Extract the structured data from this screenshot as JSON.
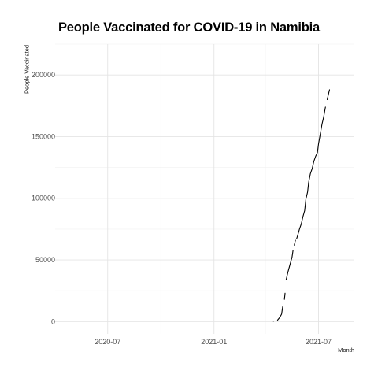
{
  "chart_data": {
    "type": "line",
    "title": "People Vaccinated for COVID-19 in Namibia",
    "xlabel": "Month",
    "ylabel": "People Vaccinated",
    "x_tick_labels": [
      "2020-07",
      "2021-01",
      "2021-07"
    ],
    "y_tick_labels": [
      "0",
      "50000",
      "100000",
      "150000",
      "200000"
    ],
    "y_ticks": [
      0,
      50000,
      100000,
      150000,
      200000
    ],
    "x_ticks": [
      "2020-07-01",
      "2021-01-01",
      "2021-07-01"
    ],
    "xlim": [
      "2020-04-01",
      "2021-09-01"
    ],
    "ylim": [
      -10000,
      225000
    ],
    "grid": true,
    "line_color": "#000000",
    "series": [
      {
        "segments": [
          [
            [
              "2021-04-14",
              400
            ]
          ],
          [
            [
              "2021-04-21",
              1200
            ],
            [
              "2021-04-25",
              3500
            ],
            [
              "2021-04-28",
              6000
            ],
            [
              "2021-04-30",
              12000
            ]
          ],
          [
            [
              "2021-05-03",
              18000
            ],
            [
              "2021-05-04",
              23000
            ]
          ],
          [
            [
              "2021-05-06",
              34000
            ],
            [
              "2021-05-09",
              40000
            ],
            [
              "2021-05-13",
              47000
            ],
            [
              "2021-05-16",
              52000
            ],
            [
              "2021-05-18",
              58000
            ]
          ],
          [
            [
              "2021-05-20",
              62000
            ],
            [
              "2021-05-22",
              66000
            ]
          ],
          [
            [
              "2021-05-24",
              67000
            ],
            [
              "2021-05-26",
              70000
            ],
            [
              "2021-05-29",
              75000
            ],
            [
              "2021-06-01",
              79000
            ],
            [
              "2021-06-04",
              85000
            ],
            [
              "2021-06-07",
              90000
            ],
            [
              "2021-06-09",
              99000
            ],
            [
              "2021-06-12",
              105000
            ],
            [
              "2021-06-14",
              113000
            ],
            [
              "2021-06-17",
              120000
            ],
            [
              "2021-06-20",
              124000
            ],
            [
              "2021-06-23",
              130000
            ],
            [
              "2021-06-26",
              134000
            ],
            [
              "2021-06-29",
              137000
            ],
            [
              "2021-07-01",
              144000
            ],
            [
              "2021-07-04",
              152000
            ],
            [
              "2021-07-07",
              160000
            ],
            [
              "2021-07-10",
              166000
            ],
            [
              "2021-07-13",
              174000
            ]
          ],
          [
            [
              "2021-07-16",
              180000
            ],
            [
              "2021-07-19",
              186000
            ],
            [
              "2021-07-20",
              188000
            ]
          ]
        ]
      }
    ]
  }
}
